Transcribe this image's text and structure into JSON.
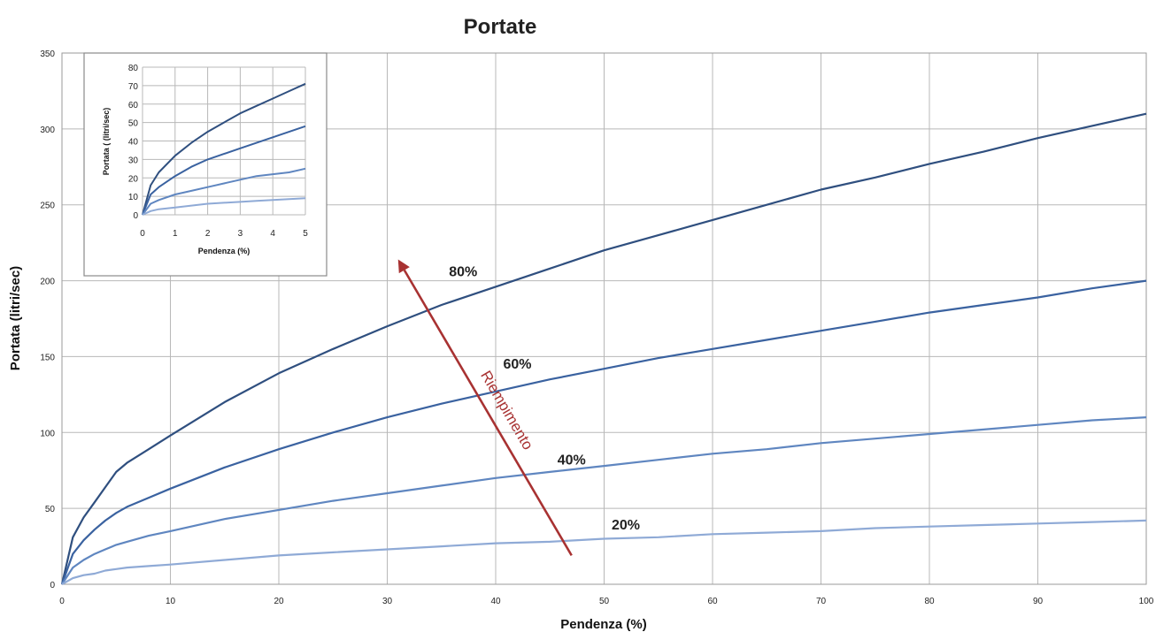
{
  "chart_data": {
    "type": "line",
    "title": "Portate",
    "xlabel": "Pendenza (%)",
    "ylabel": "Portata  (litri/sec)",
    "xlim": [
      0,
      100
    ],
    "ylim": [
      0,
      350
    ],
    "xticks": [
      "0",
      "10",
      "20",
      "30",
      "40",
      "50",
      "60",
      "70",
      "80",
      "90",
      "100"
    ],
    "yticks": [
      "0",
      "50",
      "100",
      "150",
      "200",
      "250",
      "300",
      "350"
    ],
    "grid": true,
    "x": [
      0,
      1,
      2,
      3,
      4,
      5,
      6,
      8,
      10,
      15,
      20,
      25,
      30,
      35,
      40,
      45,
      50,
      55,
      60,
      65,
      70,
      75,
      80,
      85,
      90,
      95,
      100
    ],
    "series": [
      {
        "name": "80%",
        "color": "#2f4f7f",
        "values": [
          0,
          31,
          44,
          54,
          64,
          74,
          80,
          89,
          98,
          120,
          139,
          155,
          170,
          184,
          196,
          208,
          220,
          230,
          240,
          250,
          260,
          268,
          277,
          285,
          294,
          302,
          310
        ]
      },
      {
        "name": "60%",
        "color": "#3a62a0",
        "values": [
          0,
          20,
          29,
          36,
          42,
          47,
          51,
          57,
          63,
          77,
          89,
          100,
          110,
          119,
          127,
          135,
          142,
          149,
          155,
          161,
          167,
          173,
          179,
          184,
          189,
          195,
          200
        ]
      },
      {
        "name": "40%",
        "color": "#5f86c0",
        "values": [
          0,
          11,
          16,
          20,
          23,
          26,
          28,
          32,
          35,
          43,
          49,
          55,
          60,
          65,
          70,
          74,
          78,
          82,
          86,
          89,
          93,
          96,
          99,
          102,
          105,
          108,
          110
        ]
      },
      {
        "name": "20%",
        "color": "#8faad6",
        "values": [
          0,
          4,
          6,
          7,
          9,
          10,
          11,
          12,
          13,
          16,
          19,
          21,
          23,
          25,
          27,
          28,
          30,
          31,
          33,
          34,
          35,
          37,
          38,
          39,
          40,
          41,
          42
        ]
      }
    ],
    "annotations": [
      {
        "text": "Riempimento",
        "type": "arrow",
        "color": "#a83232",
        "from": [
          47,
          19
        ],
        "to": [
          31,
          214
        ]
      }
    ],
    "inset": {
      "xlabel": "Pendenza (%)",
      "ylabel": "Portata ( (litri/sec)",
      "xlim": [
        0,
        5
      ],
      "ylim": [
        0,
        80
      ],
      "xticks": [
        "0",
        "1",
        "2",
        "3",
        "4",
        "5"
      ],
      "yticks": [
        "0",
        "10",
        "20",
        "30",
        "40",
        "50",
        "60",
        "70",
        "80"
      ],
      "x": [
        0,
        0.25,
        0.5,
        1,
        1.5,
        2,
        2.5,
        3,
        3.5,
        4,
        4.5,
        5
      ],
      "series": [
        {
          "color": "#2f4f7f",
          "values": [
            0,
            16,
            23,
            32,
            39,
            45,
            50,
            55,
            59,
            63,
            67,
            71
          ]
        },
        {
          "color": "#3a62a0",
          "values": [
            0,
            11,
            15,
            21,
            26,
            30,
            33,
            36,
            39,
            42,
            45,
            48
          ]
        },
        {
          "color": "#5f86c0",
          "values": [
            0,
            6,
            8,
            11,
            13,
            15,
            17,
            19,
            21,
            22,
            23,
            25
          ]
        },
        {
          "color": "#8faad6",
          "values": [
            0,
            2,
            3,
            4,
            5,
            6,
            6.5,
            7,
            7.5,
            8,
            8.5,
            9
          ]
        }
      ]
    }
  }
}
